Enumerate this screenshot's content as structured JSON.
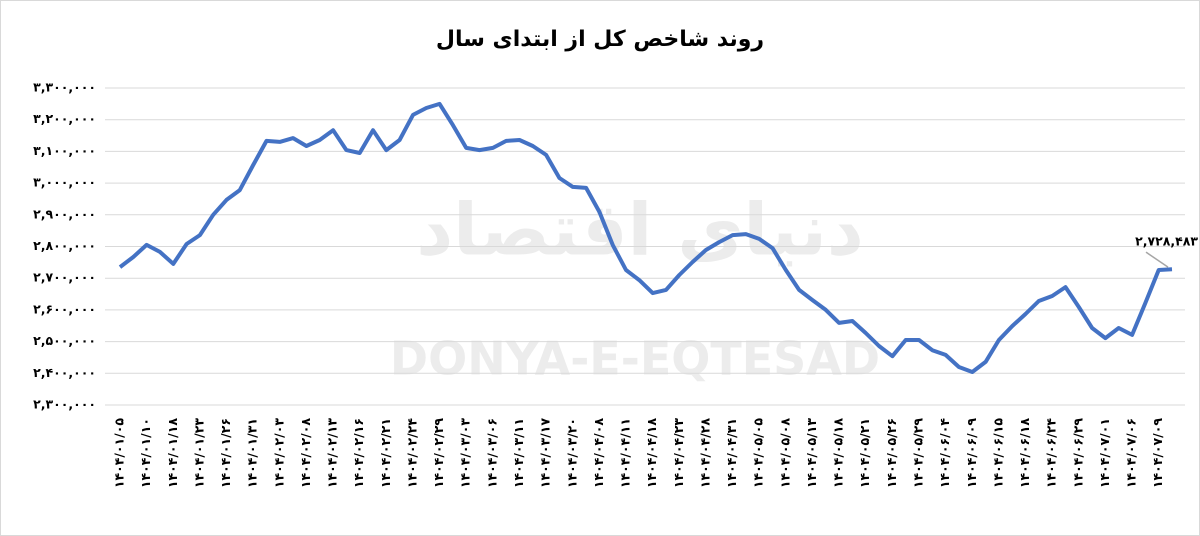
{
  "chart_data": {
    "type": "line",
    "title": "روند شاخص کل از ابتدای سال",
    "watermark": [
      "دنیای اقتصاد",
      "DONYA-E-EQTESAD"
    ],
    "categories": [
      "۱۴۰۴/۰۱/۰۵",
      null,
      "۱۴۰۴/۰۱/۱۰",
      null,
      "۱۴۰۴/۰۱/۱۸",
      null,
      "۱۴۰۴/۰۱/۲۳",
      null,
      "۱۴۰۴/۰۱/۲۶",
      null,
      "۱۴۰۴/۰۱/۳۱",
      null,
      "۱۴۰۴/۰۲/۰۳",
      null,
      "۱۴۰۴/۰۲/۰۸",
      null,
      "۱۴۰۴/۰۲/۱۳",
      null,
      "۱۴۰۴/۰۲/۱۶",
      null,
      "۱۴۰۴/۰۲/۲۱",
      null,
      "۱۴۰۴/۰۲/۲۴",
      null,
      "۱۴۰۴/۰۲/۲۹",
      null,
      "۱۴۰۴/۰۳/۰۳",
      null,
      "۱۴۰۴/۰۳/۰۶",
      null,
      "۱۴۰۴/۰۳/۱۱",
      null,
      "۱۴۰۴/۰۳/۱۷",
      null,
      "۱۴۰۴/۰۳/۲۰",
      null,
      "۱۴۰۴/۰۴/۰۸",
      null,
      "۱۴۰۴/۰۴/۱۱",
      null,
      "۱۴۰۴/۰۴/۱۸",
      null,
      "۱۴۰۴/۰۴/۲۳",
      null,
      "۱۴۰۴/۰۴/۲۸",
      null,
      "۱۴۰۴/۰۴/۳۱",
      null,
      "۱۴۰۴/۰۵/۰۵",
      null,
      "۱۴۰۴/۰۵/۰۸",
      null,
      "۱۴۰۴/۰۵/۱۳",
      null,
      "۱۴۰۴/۰۵/۱۸",
      null,
      "۱۴۰۴/۰۵/۲۱",
      null,
      "۱۴۰۴/۰۵/۲۶",
      null,
      "۱۴۰۴/۰۵/۲۹",
      null,
      "۱۴۰۴/۰۶/۰۴",
      null,
      "۱۴۰۴/۰۶/۰۹",
      null,
      "۱۴۰۴/۰۶/۱۵",
      null,
      "۱۴۰۴/۰۶/۱۸",
      null,
      "۱۴۰۴/۰۶/۲۴",
      null,
      "۱۴۰۴/۰۶/۲۹",
      null,
      "۱۴۰۴/۰۷/۰۱",
      null,
      "۱۴۰۴/۰۷/۰۶",
      null,
      "۱۴۰۴/۰۷/۰۹",
      null
    ],
    "series": [
      {
        "color": "#4472c4",
        "values": [
          2735000,
          2767000,
          2805000,
          2783000,
          2745000,
          2808000,
          2836000,
          2900000,
          2947000,
          2978000,
          3057000,
          3133000,
          3130000,
          3142000,
          3117000,
          3136000,
          3167000,
          3104000,
          3095000,
          3167000,
          3104000,
          3136000,
          3215000,
          3237000,
          3250000,
          3183000,
          3111000,
          3104000,
          3111000,
          3133000,
          3136000,
          3117000,
          3089000,
          3016000,
          2988000,
          2985000,
          2909000,
          2805000,
          2726000,
          2694000,
          2653000,
          2663000,
          2710000,
          2751000,
          2789000,
          2814000,
          2836000,
          2839000,
          2824000,
          2795000,
          2726000,
          2663000,
          2631000,
          2600000,
          2559000,
          2565000,
          2527000,
          2486000,
          2454000,
          2505000,
          2505000,
          2473000,
          2458000,
          2420000,
          2404000,
          2436000,
          2505000,
          2549000,
          2587000,
          2628000,
          2644000,
          2672000,
          2609000,
          2543000,
          2511000,
          2543000,
          2521000,
          2622000,
          2726000,
          2728483
        ],
        "value_labels": [
          null,
          null,
          null,
          null,
          null,
          null,
          null,
          null,
          null,
          null,
          null,
          null,
          null,
          null,
          null,
          null,
          null,
          null,
          null,
          null,
          null,
          null,
          null,
          null,
          null,
          null,
          null,
          null,
          null,
          null,
          null,
          null,
          null,
          null,
          null,
          null,
          null,
          null,
          null,
          null,
          null,
          null,
          null,
          null,
          null,
          null,
          null,
          null,
          null,
          null,
          null,
          null,
          null,
          null,
          null,
          null,
          null,
          null,
          null,
          null,
          null,
          null,
          null,
          null,
          null,
          null,
          null,
          null,
          null,
          null,
          null,
          null,
          null,
          null,
          null,
          null,
          null,
          null,
          null,
          "۲,۷۲۸,۴۸۳"
        ]
      }
    ],
    "ylim": [
      2300000,
      3300000
    ],
    "yticks": [
      {
        "value": 2300000,
        "label": "۲,۳۰۰,۰۰۰"
      },
      {
        "value": 2400000,
        "label": "۲,۴۰۰,۰۰۰"
      },
      {
        "value": 2500000,
        "label": "۲,۵۰۰,۰۰۰"
      },
      {
        "value": 2600000,
        "label": "۲,۶۰۰,۰۰۰"
      },
      {
        "value": 2700000,
        "label": "۲,۷۰۰,۰۰۰"
      },
      {
        "value": 2800000,
        "label": "۲,۸۰۰,۰۰۰"
      },
      {
        "value": 2900000,
        "label": "۲,۹۰۰,۰۰۰"
      },
      {
        "value": 3000000,
        "label": "۳,۰۰۰,۰۰۰"
      },
      {
        "value": 3100000,
        "label": "۳,۱۰۰,۰۰۰"
      },
      {
        "value": 3200000,
        "label": "۳,۲۰۰,۰۰۰"
      },
      {
        "value": 3300000,
        "label": "۳,۳۰۰,۰۰۰"
      }
    ],
    "grid": true
  }
}
